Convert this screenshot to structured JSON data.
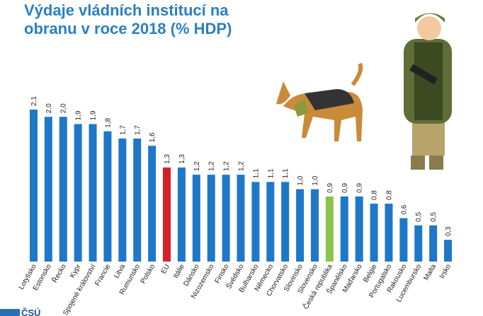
{
  "chart_data": {
    "type": "bar",
    "title": "Výdaje vládních institucí na obranu v roce 2018 (% HDP)",
    "categories": [
      "Lotyšsko",
      "Estonsko",
      "Řecko",
      "Kypr",
      "Spojené království",
      "Francie",
      "Litva",
      "Rumunsko",
      "Polsko",
      "EU",
      "Itálie",
      "Dánsko",
      "Nizozemsko",
      "Finsko",
      "Švédsko",
      "Bulharsko",
      "Německo",
      "Chorvatsko",
      "Slovinsko",
      "Slovensko",
      "Česká republika",
      "Španělsko",
      "Maďarsko",
      "Belgie",
      "Portugalsko",
      "Rakousko",
      "Lucembursko",
      "Malta",
      "Irsko"
    ],
    "values": [
      2.1,
      2.0,
      2.0,
      1.9,
      1.9,
      1.8,
      1.7,
      1.7,
      1.6,
      1.3,
      1.3,
      1.2,
      1.2,
      1.2,
      1.2,
      1.1,
      1.1,
      1.1,
      1.0,
      1.0,
      0.9,
      0.9,
      0.9,
      0.8,
      0.8,
      0.6,
      0.5,
      0.5,
      0.3
    ],
    "value_labels": [
      "2,1",
      "2,0",
      "2,0",
      "1,9",
      "1,9",
      "1,8",
      "1,7",
      "1,7",
      "1,6",
      "1,3",
      "1,3",
      "1,2",
      "1,2",
      "1,2",
      "1,2",
      "1,1",
      "1,1",
      "1,1",
      "1,0",
      "1,0",
      "0,9",
      "0,9",
      "0,9",
      "0,8",
      "0,8",
      "0,6",
      "0,5",
      "0,5",
      "0,3"
    ],
    "colors": [
      "#1f77c8",
      "#1f77c8",
      "#1f77c8",
      "#1f77c8",
      "#1f77c8",
      "#1f77c8",
      "#1f77c8",
      "#1f77c8",
      "#1f77c8",
      "#d62027",
      "#1f77c8",
      "#1f77c8",
      "#1f77c8",
      "#1f77c8",
      "#1f77c8",
      "#1f77c8",
      "#1f77c8",
      "#1f77c8",
      "#1f77c8",
      "#1f77c8",
      "#8bc34a",
      "#1f77c8",
      "#1f77c8",
      "#1f77c8",
      "#1f77c8",
      "#1f77c8",
      "#1f77c8",
      "#1f77c8",
      "#1f77c8"
    ]
  },
  "logo": "ČSÚ"
}
